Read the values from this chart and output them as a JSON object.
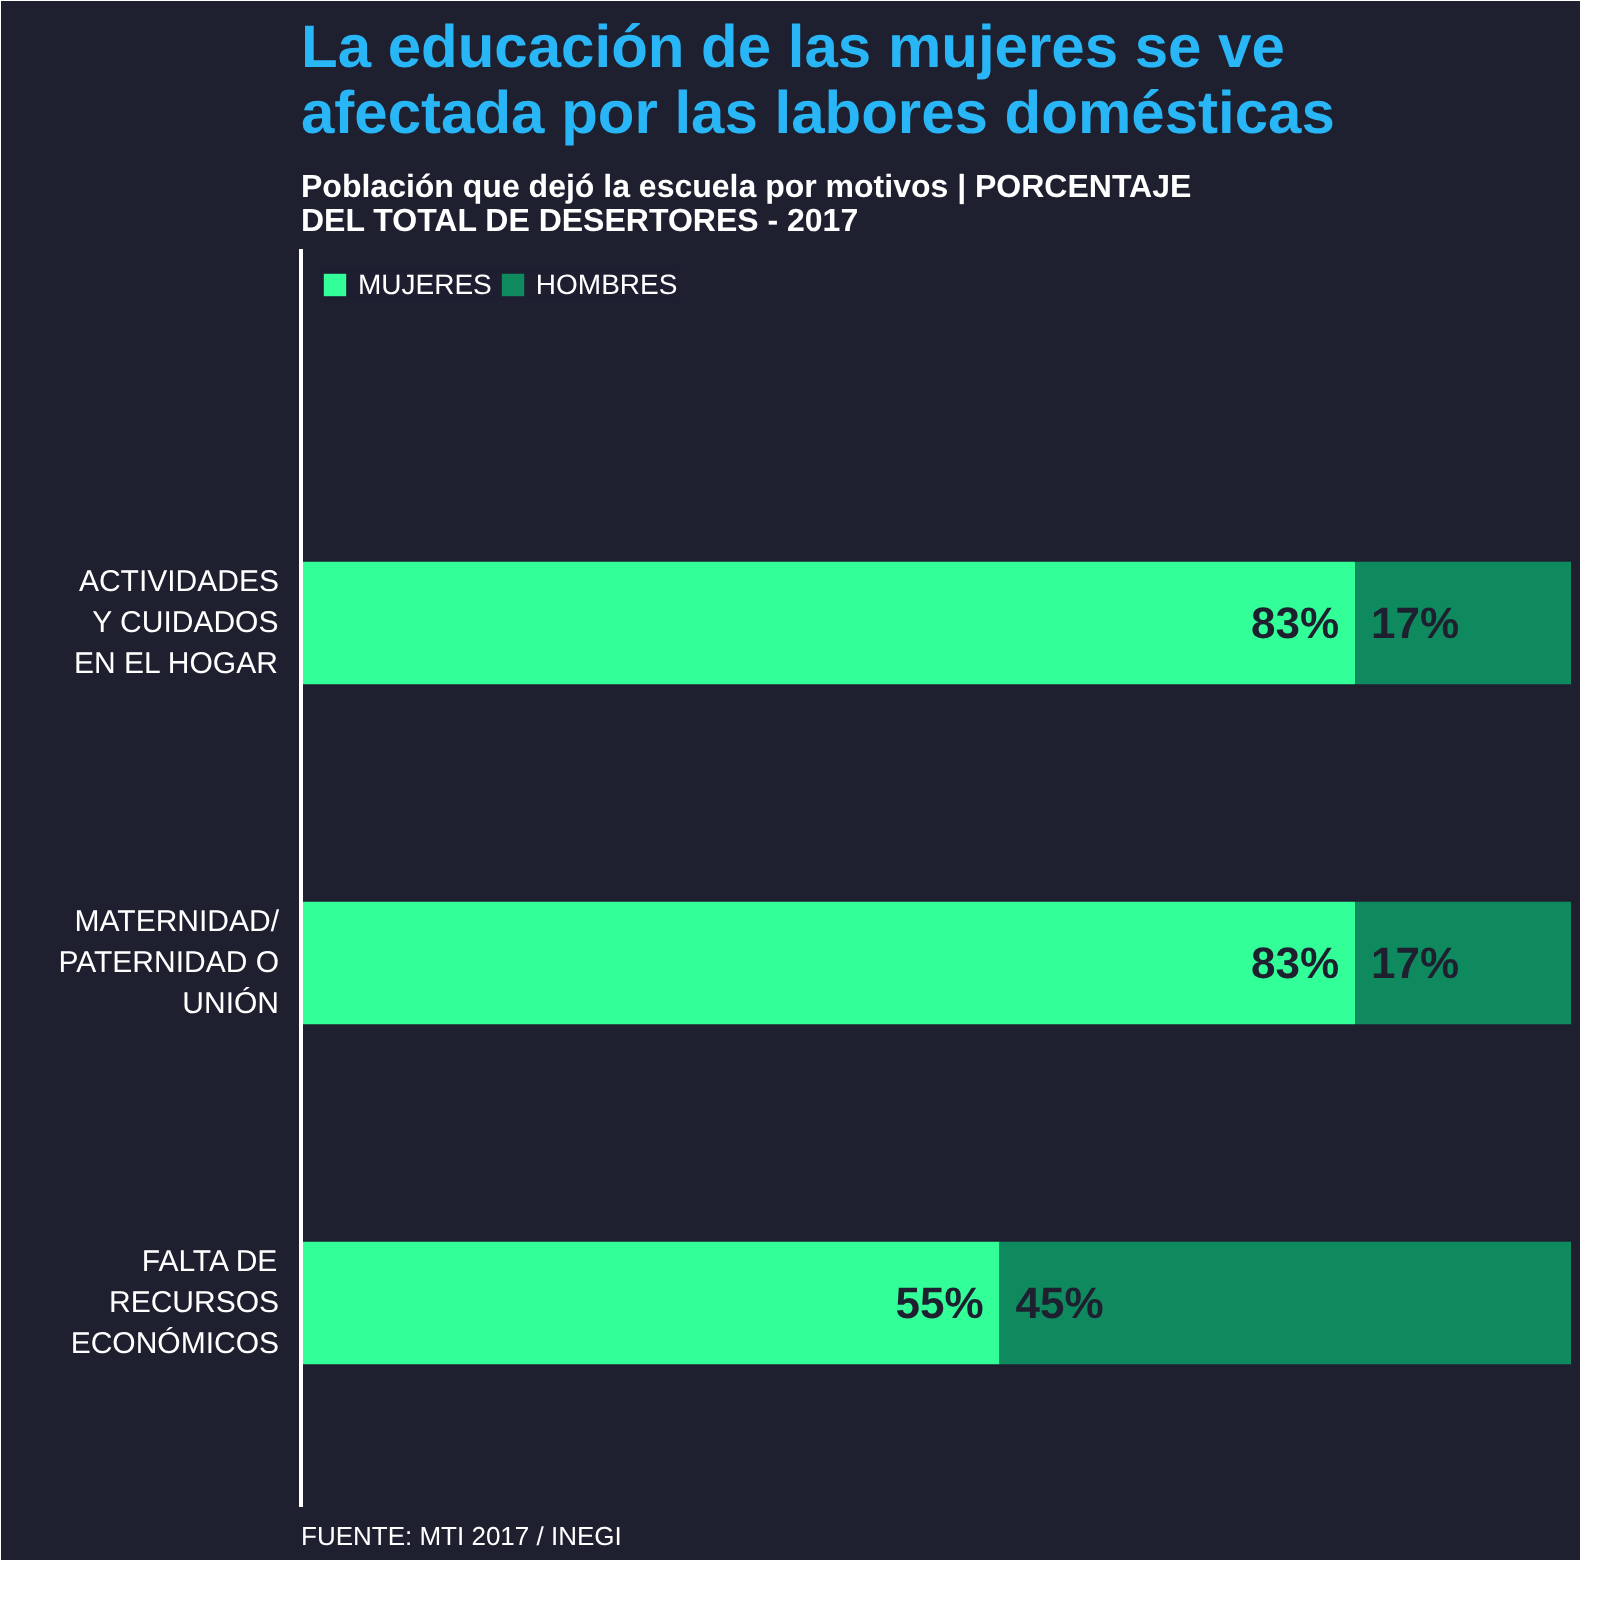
{
  "chart_data": {
    "type": "bar",
    "orientation": "horizontal",
    "stacked": true,
    "title": "La educación de las mujeres se ve\nafectada por las labores domésticas",
    "subtitle": "Población que dejó la escuela por motivos | PORCENTAJE\nDEL TOTAL DE DESERTORES - 2017",
    "categories": [
      "ACTIVIDADES\nY CUIDADOS\nEN EL HOGAR",
      "MATERNIDAD/\nPATERNIDAD O\nUNIÓN",
      "FALTA DE\nRECURSOS\nECONÓMICOS"
    ],
    "series": [
      {
        "name": "MUJERES",
        "color": "#33ff99",
        "values": [
          83,
          83,
          55
        ],
        "value_labels": [
          "83%",
          "83%",
          "55%"
        ]
      },
      {
        "name": "HOMBRES",
        "color": "#0f8a5f",
        "values": [
          17,
          17,
          45
        ],
        "value_labels": [
          "17%",
          "17%",
          "45%"
        ]
      }
    ],
    "data_labels": true,
    "legend": "top left",
    "grid": false,
    "annotations": [
      "FUENTE: MTI 2017 / INEGI"
    ]
  }
}
